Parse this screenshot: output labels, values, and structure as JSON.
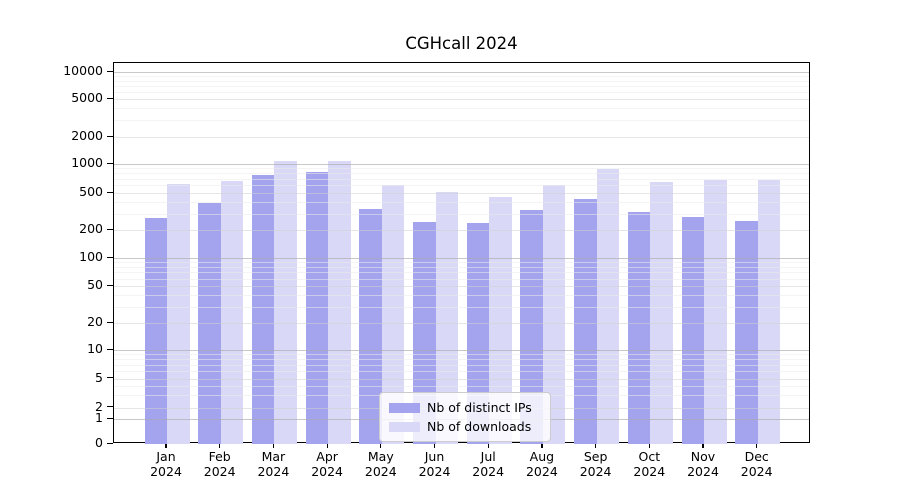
{
  "title": "CGHcall 2024",
  "colors": {
    "distinct_ips": "#a3a3ee",
    "downloads": "#d9d9f7",
    "grid_major": "rgba(170,170,170,0.65)",
    "grid_sub": "rgba(210,210,210,0.55)",
    "grid_minor": "rgba(235,235,235,0.55)",
    "spine": "#000000"
  },
  "legend": {
    "items": [
      {
        "label": "Nb of distinct IPs",
        "series": "distinct_ips"
      },
      {
        "label": "Nb of downloads",
        "series": "downloads"
      }
    ]
  },
  "x_axis": {
    "year": "2024",
    "months": [
      "Jan",
      "Feb",
      "Mar",
      "Apr",
      "May",
      "Jun",
      "Jul",
      "Aug",
      "Sep",
      "Oct",
      "Nov",
      "Dec"
    ]
  },
  "y_axis": {
    "ticks": [
      {
        "value": 0,
        "label": "0",
        "level": "axis"
      },
      {
        "value": 1,
        "label": "1",
        "level": "major"
      },
      {
        "value": 2,
        "label": "2",
        "level": "sub"
      },
      {
        "value": 5,
        "label": "5",
        "level": "sub"
      },
      {
        "value": 10,
        "label": "10",
        "level": "major"
      },
      {
        "value": 20,
        "label": "20",
        "level": "sub"
      },
      {
        "value": 50,
        "label": "50",
        "level": "sub"
      },
      {
        "value": 100,
        "label": "100",
        "level": "major"
      },
      {
        "value": 200,
        "label": "200",
        "level": "sub"
      },
      {
        "value": 500,
        "label": "500",
        "level": "sub"
      },
      {
        "value": 1000,
        "label": "1000",
        "level": "major"
      },
      {
        "value": 2000,
        "label": "2000",
        "level": "sub"
      },
      {
        "value": 5000,
        "label": "5000",
        "level": "sub"
      },
      {
        "value": 10000,
        "label": "10000",
        "level": "major"
      }
    ]
  },
  "chart_data": {
    "type": "bar",
    "title": "CGHcall 2024",
    "categories": [
      "Jan 2024",
      "Feb 2024",
      "Mar 2024",
      "Apr 2024",
      "May 2024",
      "Jun 2024",
      "Jul 2024",
      "Aug 2024",
      "Sep 2024",
      "Oct 2024",
      "Nov 2024",
      "Dec 2024"
    ],
    "series": [
      {
        "name": "Nb of distinct IPs",
        "color": "#a3a3ee",
        "values": [
          270,
          390,
          770,
          825,
          340,
          245,
          237,
          325,
          432,
          316,
          273,
          248
        ]
      },
      {
        "name": "Nb of downloads",
        "color": "#d9d9f7",
        "values": [
          620,
          670,
          1070,
          1090,
          610,
          515,
          455,
          610,
          890,
          655,
          690,
          675
        ]
      }
    ],
    "xlabel": "",
    "ylabel": "",
    "yscale": "symlog",
    "y_ticks": [
      0,
      1,
      2,
      5,
      10,
      20,
      50,
      100,
      200,
      500,
      1000,
      2000,
      5000,
      10000
    ],
    "ylim": [
      0,
      13000
    ],
    "grid": true,
    "legend_position": "lower center"
  }
}
